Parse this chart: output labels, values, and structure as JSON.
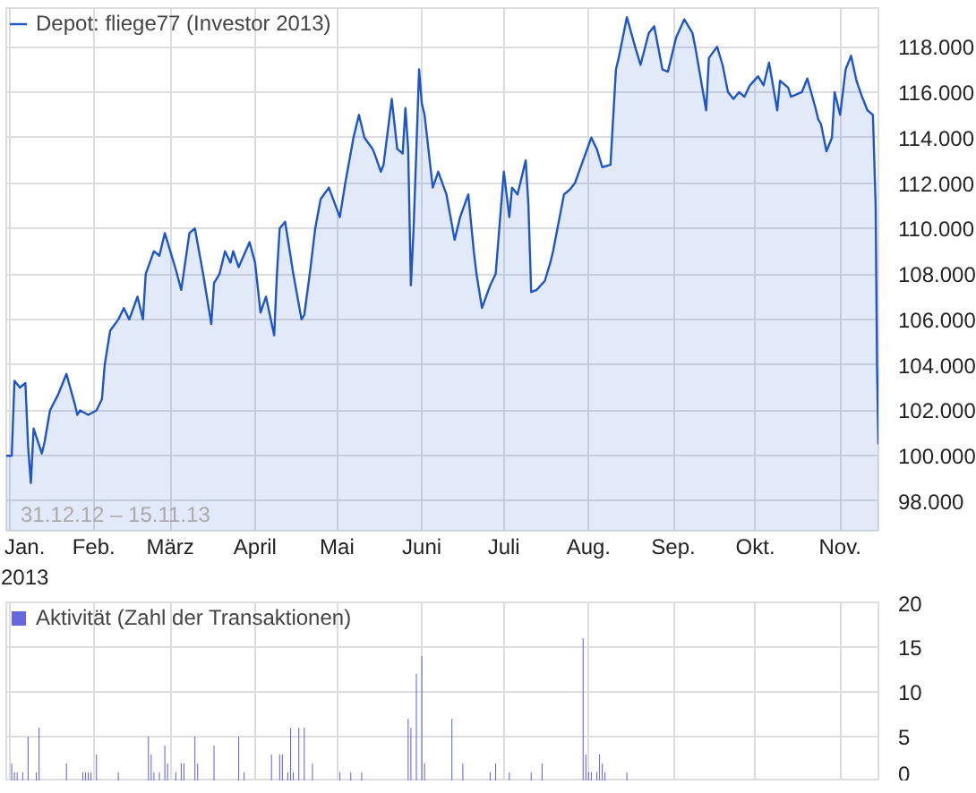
{
  "chart_data": [
    {
      "type": "area",
      "xlim": [
        "2012-12-31",
        "2013-11-15"
      ],
      "ylim": [
        96700,
        119700
      ],
      "xticks": [
        {
          "value": "2013-01-01",
          "label": "Jan.\n2013"
        },
        {
          "value": "2013-02-01",
          "label": "Feb."
        },
        {
          "value": "2013-03-01",
          "label": "März"
        },
        {
          "value": "2013-04-01",
          "label": "April"
        },
        {
          "value": "2013-05-01",
          "label": "Mai"
        },
        {
          "value": "2013-06-01",
          "label": "Juni"
        },
        {
          "value": "2013-07-01",
          "label": "Juli"
        },
        {
          "value": "2013-08-01",
          "label": "Aug."
        },
        {
          "value": "2013-09-01",
          "label": "Sep."
        },
        {
          "value": "2013-10-01",
          "label": "Okt."
        },
        {
          "value": "2013-11-01",
          "label": "Nov."
        }
      ],
      "yticks": [
        {
          "value": 98000,
          "label": "98.000"
        },
        {
          "value": 100000,
          "label": "100.000"
        },
        {
          "value": 102000,
          "label": "102.000"
        },
        {
          "value": 104000,
          "label": "104.000"
        },
        {
          "value": 106000,
          "label": "106.000"
        },
        {
          "value": 108000,
          "label": "108.000"
        },
        {
          "value": 110000,
          "label": "110.000"
        },
        {
          "value": 112000,
          "label": "112.000"
        },
        {
          "value": 114000,
          "label": "114.000"
        },
        {
          "value": 116000,
          "label": "116.000"
        },
        {
          "value": 118000,
          "label": "118.000"
        }
      ],
      "grid": true,
      "legend": "top left",
      "annotations": [
        "31.12.12 – 15.11.13"
      ],
      "series": [
        {
          "name": "Depot: fliege77 (Investor 2013)",
          "color": "#1e56c8",
          "x": [
            "2012-12-31",
            "2013-01-02",
            "2013-01-03",
            "2013-01-05",
            "2013-01-07",
            "2013-01-08",
            "2013-01-09",
            "2013-01-10",
            "2013-01-13",
            "2013-01-14",
            "2013-01-16",
            "2013-01-19",
            "2013-01-20",
            "2013-01-22",
            "2013-01-25",
            "2013-01-26",
            "2013-01-27",
            "2013-01-30",
            "2013-02-02",
            "2013-02-04",
            "2013-02-05",
            "2013-02-07",
            "2013-02-10",
            "2013-02-12",
            "2013-02-14",
            "2013-02-17",
            "2013-02-19",
            "2013-02-20",
            "2013-02-23",
            "2013-02-25",
            "2013-02-27",
            "2013-03-03",
            "2013-03-05",
            "2013-03-08",
            "2013-03-10",
            "2013-03-13",
            "2013-03-16",
            "2013-03-17",
            "2013-03-19",
            "2013-03-21",
            "2013-03-23",
            "2013-03-24",
            "2013-03-26",
            "2013-03-30",
            "2013-04-01",
            "2013-04-03",
            "2013-04-05",
            "2013-04-08",
            "2013-04-09",
            "2013-04-10",
            "2013-04-12",
            "2013-04-15",
            "2013-04-18",
            "2013-04-19",
            "2013-04-21",
            "2013-04-23",
            "2013-04-25",
            "2013-04-28",
            "2013-05-02",
            "2013-05-04",
            "2013-05-07",
            "2013-05-09",
            "2013-05-11",
            "2013-05-14",
            "2013-05-15",
            "2013-05-17",
            "2013-05-18",
            "2013-05-21",
            "2013-05-23",
            "2013-05-25",
            "2013-05-26",
            "2013-05-27",
            "2013-05-28",
            "2013-05-29",
            "2013-05-31",
            "2013-06-01",
            "2013-06-02",
            "2013-06-05",
            "2013-06-07",
            "2013-06-10",
            "2013-06-13",
            "2013-06-15",
            "2013-06-18",
            "2013-06-20",
            "2013-06-21",
            "2013-06-23",
            "2013-06-26",
            "2013-06-28",
            "2013-07-01",
            "2013-07-03",
            "2013-07-04",
            "2013-07-06",
            "2013-07-09",
            "2013-07-10",
            "2013-07-11",
            "2013-07-13",
            "2013-07-16",
            "2013-07-18",
            "2013-07-19",
            "2013-07-23",
            "2013-07-25",
            "2013-07-27",
            "2013-07-30",
            "2013-08-02",
            "2013-08-04",
            "2013-08-06",
            "2013-08-09",
            "2013-08-11",
            "2013-08-12",
            "2013-08-15",
            "2013-08-18",
            "2013-08-20",
            "2013-08-23",
            "2013-08-25",
            "2013-08-28",
            "2013-08-30",
            "2013-09-02",
            "2013-09-05",
            "2013-09-08",
            "2013-09-09",
            "2013-09-13",
            "2013-09-14",
            "2013-09-17",
            "2013-09-19",
            "2013-09-21",
            "2013-09-23",
            "2013-09-25",
            "2013-09-27",
            "2013-09-29",
            "2013-10-02",
            "2013-10-04",
            "2013-10-06",
            "2013-10-09",
            "2013-10-10",
            "2013-10-13",
            "2013-10-14",
            "2013-10-18",
            "2013-10-20",
            "2013-10-23",
            "2013-10-24",
            "2013-10-25",
            "2013-10-27",
            "2013-10-29",
            "2013-10-30",
            "2013-11-01",
            "2013-11-03",
            "2013-11-05",
            "2013-11-07",
            "2013-11-09",
            "2013-11-11",
            "2013-11-13",
            "2013-11-14",
            "2013-11-14T12:00",
            "2013-11-15"
          ],
          "values": [
            100000,
            100000,
            103300,
            103000,
            103200,
            100400,
            98800,
            101200,
            100100,
            100600,
            102000,
            102700,
            103000,
            103600,
            102300,
            101800,
            102000,
            101800,
            102000,
            102500,
            104000,
            105500,
            106000,
            106500,
            106000,
            107000,
            106000,
            108000,
            109000,
            108800,
            109800,
            108200,
            107300,
            109800,
            110000,
            108000,
            105800,
            107600,
            108000,
            109000,
            108500,
            109000,
            108300,
            109400,
            108500,
            106300,
            107000,
            105300,
            108000,
            110000,
            110300,
            108000,
            106000,
            106200,
            108000,
            110000,
            111300,
            111800,
            110500,
            112000,
            114000,
            115000,
            114000,
            113500,
            113200,
            112500,
            112800,
            115700,
            113500,
            113300,
            115300,
            113500,
            107500,
            110000,
            117000,
            115500,
            115000,
            111800,
            112500,
            111500,
            109500,
            110500,
            111500,
            109000,
            108000,
            106500,
            107500,
            108000,
            112500,
            110500,
            111800,
            111500,
            113000,
            111000,
            107200,
            107300,
            107700,
            108500,
            109000,
            111500,
            111700,
            112000,
            113000,
            114000,
            113500,
            112700,
            112800,
            117000,
            117500,
            119300,
            118000,
            117200,
            118600,
            118900,
            117000,
            116900,
            118400,
            119200,
            118600,
            118000,
            115200,
            117500,
            118000,
            117200,
            116000,
            115700,
            116000,
            115800,
            116300,
            116700,
            116300,
            117300,
            115200,
            116500,
            116200,
            115800,
            116000,
            116600,
            115300,
            114800,
            114600,
            113400,
            114000,
            116000,
            115000,
            117000,
            117600,
            116500,
            115800,
            115200,
            115000,
            111000,
            104000,
            100500
          ]
        }
      ]
    },
    {
      "type": "bar",
      "xlim": [
        "2012-12-31",
        "2013-11-15"
      ],
      "ylim": [
        0,
        20
      ],
      "yticks": [
        0,
        5,
        10,
        15,
        20
      ],
      "xticks": [
        {
          "value": "2013-01-01",
          "label": null
        },
        {
          "value": "2013-02-01",
          "label": null
        },
        {
          "value": "2013-03-01",
          "label": null
        },
        {
          "value": "2013-04-01",
          "label": null
        },
        {
          "value": "2013-05-01",
          "label": null
        },
        {
          "value": "2013-06-01",
          "label": null
        },
        {
          "value": "2013-07-01",
          "label": null
        },
        {
          "value": "2013-08-01",
          "label": null
        },
        {
          "value": "2013-09-01",
          "label": null
        },
        {
          "value": "2013-10-01",
          "label": null
        },
        {
          "value": "2013-11-01",
          "label": null
        }
      ],
      "tick_labels": "y",
      "grid": true,
      "legend": "top left",
      "series": [
        {
          "name": "Aktivität (Zahl der Transaktionen)",
          "color": "#6666dd",
          "x": [
            "2013-01-02",
            "2013-01-03",
            "2013-01-04",
            "2013-01-06",
            "2013-01-08",
            "2013-01-11",
            "2013-01-12",
            "2013-01-22",
            "2013-01-28",
            "2013-01-29",
            "2013-01-30",
            "2013-01-31",
            "2013-02-02",
            "2013-02-10",
            "2013-02-21",
            "2013-02-22",
            "2013-02-23",
            "2013-02-25",
            "2013-02-27",
            "2013-02-28",
            "2013-03-03",
            "2013-03-05",
            "2013-03-06",
            "2013-03-10",
            "2013-03-11",
            "2013-03-17",
            "2013-03-26",
            "2013-03-28",
            "2013-04-07",
            "2013-04-10",
            "2013-04-11",
            "2013-04-13",
            "2013-04-14",
            "2013-04-15",
            "2013-04-17",
            "2013-04-19",
            "2013-04-22",
            "2013-05-02",
            "2013-05-06",
            "2013-05-10",
            "2013-05-27",
            "2013-05-28",
            "2013-05-30",
            "2013-06-01",
            "2013-06-02",
            "2013-06-12",
            "2013-06-16",
            "2013-06-26",
            "2013-06-28",
            "2013-07-03",
            "2013-07-11",
            "2013-07-15",
            "2013-07-30",
            "2013-07-31",
            "2013-08-01",
            "2013-08-02",
            "2013-08-04",
            "2013-08-05",
            "2013-08-06",
            "2013-08-07",
            "2013-08-15"
          ],
          "values": [
            2,
            1,
            1,
            1,
            5,
            1,
            6,
            2,
            1,
            1,
            1,
            1,
            3,
            1,
            5,
            3,
            1,
            1,
            4,
            2,
            1,
            2,
            2,
            5,
            2,
            4,
            5,
            1,
            3,
            3,
            3,
            1,
            6,
            1,
            6,
            6,
            2,
            1,
            1,
            1,
            7,
            6,
            12,
            14,
            2,
            7,
            2,
            1,
            2,
            1,
            1,
            2,
            16,
            3,
            1,
            1,
            1,
            3,
            2,
            1,
            1
          ]
        }
      ]
    }
  ]
}
